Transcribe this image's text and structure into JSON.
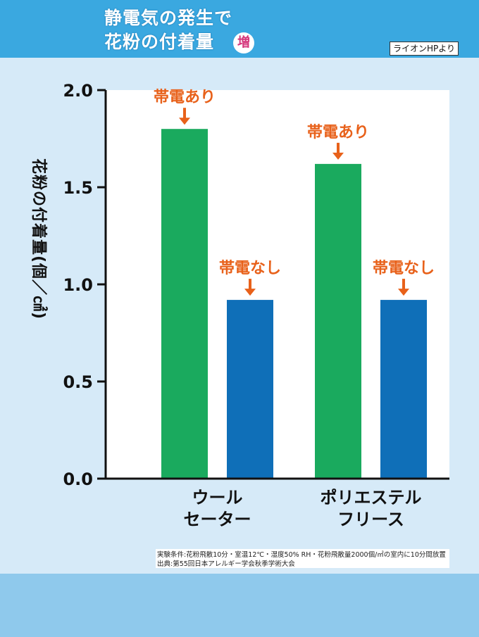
{
  "header": {
    "title_line1": "静電気の発生で",
    "title_line2": "花粉の付着量",
    "badge": "増",
    "source": "ライオンHPより"
  },
  "chart_data": {
    "type": "bar",
    "ylabel": "花粉の付着量(個／㎠)",
    "ylim": [
      0,
      2.0
    ],
    "yticks": [
      "0.0",
      "0.5",
      "1.0",
      "1.5",
      "2.0"
    ],
    "categories": [
      "ウール\nセーター",
      "ポリエステル\nフリース"
    ],
    "series": [
      {
        "name": "帯電あり",
        "color": "#1aaa5e",
        "values": [
          1.8,
          1.62
        ]
      },
      {
        "name": "帯電なし",
        "color": "#0f6fb8",
        "values": [
          0.92,
          0.92
        ]
      }
    ],
    "grid": false
  },
  "notes": {
    "line1": "実験条件:花粉飛散10分・室温12℃・湿度50% RH・花粉飛散量2000個/㎡の室内に10分間放置",
    "line2": "出典:第55回日本アレルギー学会秋季学術大会"
  },
  "colors": {
    "header_bg": "#3aa8e0",
    "page_bg": "#d6eaf8",
    "plot_bg": "#ffffff",
    "annotation": "#e8611a"
  }
}
